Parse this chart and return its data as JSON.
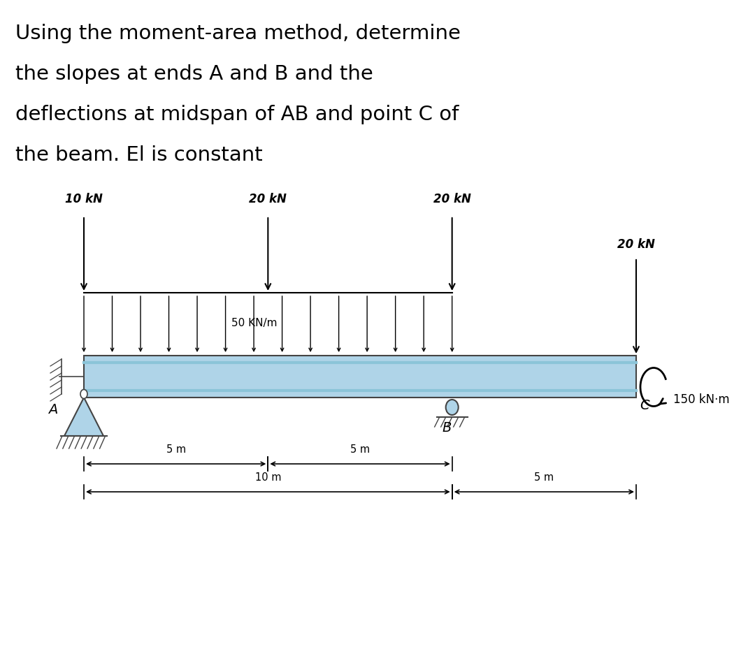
{
  "title_lines": [
    "Using the moment-area method, determine",
    "the slopes at ends A and B and the",
    "deflections at midspan of AB and point C of",
    "the beam. El is constant"
  ],
  "title_fontsize": 21,
  "bg_color": "#ffffff",
  "beam_color": "#afd4e8",
  "udl_magnitude": "50 KN/m",
  "point_loads": [
    {
      "x": 0.0,
      "label": "10 kN"
    },
    {
      "x": 5.0,
      "label": "20 kN"
    },
    {
      "x": 10.0,
      "label": "20 kN"
    },
    {
      "x": 15.0,
      "label": "20 kN"
    }
  ],
  "moment_label": "150 kN·m",
  "dim_labels": [
    "5 m",
    "5 m",
    "10 m",
    "5 m"
  ],
  "label_A": "A",
  "label_B": "B",
  "label_C": "C"
}
